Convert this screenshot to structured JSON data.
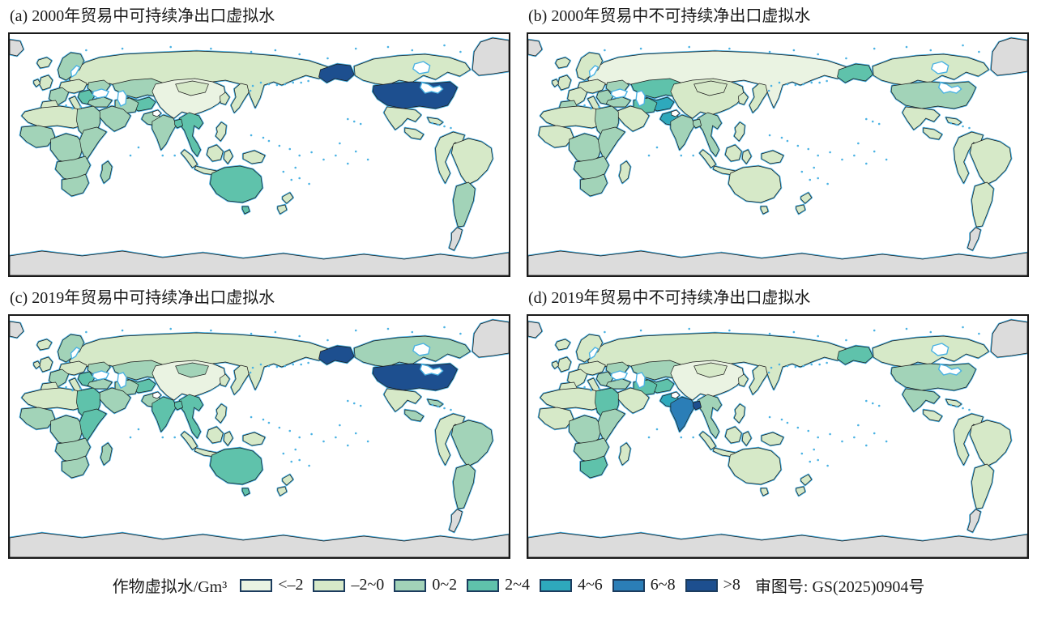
{
  "figure": {
    "panels": [
      {
        "id": "a",
        "title": "(a) 2000年贸易中可持续净出口虚拟水",
        "countries": {
          "russia": "–2~0",
          "china": "<–2",
          "mongolia": "–2~0",
          "kazakhstan": "0~2",
          "centralasia": "2~4",
          "iran": "0~2",
          "mideast": "0~2",
          "pakistan": "0~2",
          "india": "0~2",
          "bangladesh": "2~4",
          "seasia": "2~4",
          "indonesia": "–2~0",
          "japan": "–2~0",
          "korea": "–2~0",
          "scandinavia": "0~2",
          "uk": "–2~0",
          "iceland": "–2~0",
          "france": "0~2",
          "iberia": "–2~0",
          "centraleurope": "–2~0",
          "italy": "–2~0",
          "balkans": "2~4",
          "ukraine": "0~2",
          "turkey": "0~2",
          "africaN": "–2~0",
          "egypt": "0~2",
          "africaW": "0~2",
          "africaC": "0~2",
          "africaE": "0~2",
          "africaS": "0~2",
          "southafrica": "0~2",
          "madagascar": "0~2",
          "australia": "2~4",
          "nz": "–2~0",
          "alaska": ">8",
          "canada": "–2~0",
          "usa": ">8",
          "mexico": "–2~0",
          "camerica": "–2~0",
          "andes": "–2~0",
          "brazil": "–2~0",
          "argentina": "0~2",
          "kashmir": "blank",
          "greenland": "no_data",
          "antarctica": "no_data"
        }
      },
      {
        "id": "b",
        "title": "(b) 2000年贸易中不可持续净出口虚拟水",
        "countries": {
          "russia": "<–2",
          "china": "–2~0",
          "mongolia": "–2~0",
          "kazakhstan": "2~4",
          "centralasia": "4~6",
          "iran": "2~4",
          "mideast": "–2~0",
          "pakistan": "4~6",
          "india": "0~2",
          "bangladesh": "0~2",
          "seasia": "0~2",
          "indonesia": "–2~0",
          "japan": "–2~0",
          "korea": "–2~0",
          "scandinavia": "–2~0",
          "uk": "–2~0",
          "iceland": "–2~0",
          "france": "–2~0",
          "iberia": "0~2",
          "centraleurope": "–2~0",
          "italy": "–2~0",
          "balkans": "0~2",
          "ukraine": "0~2",
          "turkey": "0~2",
          "africaN": "–2~0",
          "egypt": "0~2",
          "africaW": "–2~0",
          "africaC": "0~2",
          "africaE": "0~2",
          "africaS": "0~2",
          "southafrica": "0~2",
          "madagascar": "–2~0",
          "australia": "–2~0",
          "nz": "–2~0",
          "alaska": "2~4",
          "canada": "–2~0",
          "usa": "0~2",
          "mexico": "–2~0",
          "camerica": "–2~0",
          "andes": "–2~0",
          "brazil": "–2~0",
          "argentina": "–2~0",
          "kashmir": "blank",
          "greenland": "no_data",
          "antarctica": "no_data"
        }
      },
      {
        "id": "c",
        "title": "(c) 2019年贸易中可持续净出口虚拟水",
        "countries": {
          "russia": "–2~0",
          "china": "<–2",
          "mongolia": "0~2",
          "kazakhstan": "0~2",
          "centralasia": "2~4",
          "iran": "0~2",
          "mideast": "0~2",
          "pakistan": "0~2",
          "india": "2~4",
          "bangladesh": "2~4",
          "seasia": "2~4",
          "indonesia": "–2~0",
          "japan": "–2~0",
          "korea": "–2~0",
          "scandinavia": "0~2",
          "uk": "–2~0",
          "iceland": "–2~0",
          "france": "0~2",
          "iberia": "–2~0",
          "centraleurope": "–2~0",
          "italy": "–2~0",
          "balkans": "2~4",
          "ukraine": "0~2",
          "turkey": "0~2",
          "africaN": "–2~0",
          "egypt": "2~4",
          "africaW": "0~2",
          "africaC": "0~2",
          "africaE": "2~4",
          "africaS": "0~2",
          "southafrica": "0~2",
          "madagascar": "0~2",
          "australia": "2~4",
          "nz": "–2~0",
          "alaska": ">8",
          "canada": "0~2",
          "usa": ">8",
          "mexico": "–2~0",
          "camerica": "0~2",
          "andes": "–2~0",
          "brazil": "0~2",
          "argentina": "0~2",
          "kashmir": "blank",
          "greenland": "no_data",
          "antarctica": "no_data"
        }
      },
      {
        "id": "d",
        "title": "(d) 2019年贸易中不可持续净出口虚拟水",
        "countries": {
          "russia": "–2~0",
          "china": "<–2",
          "mongolia": "–2~0",
          "kazakhstan": "0~2",
          "centralasia": "2~4",
          "iran": "2~4",
          "mideast": "–2~0",
          "pakistan": "4~6",
          "india": "6~8",
          "bangladesh": ">8",
          "seasia": "0~2",
          "indonesia": "–2~0",
          "japan": "–2~0",
          "korea": "–2~0",
          "scandinavia": "–2~0",
          "uk": "–2~0",
          "iceland": "–2~0",
          "france": "–2~0",
          "iberia": "–2~0",
          "centraleurope": "–2~0",
          "italy": "–2~0",
          "balkans": "0~2",
          "ukraine": "0~2",
          "turkey": "0~2",
          "africaN": "–2~0",
          "egypt": "2~4",
          "africaW": "–2~0",
          "africaC": "0~2",
          "africaE": "0~2",
          "africaS": "0~2",
          "southafrica": "2~4",
          "madagascar": "–2~0",
          "australia": "–2~0",
          "nz": "–2~0",
          "alaska": "2~4",
          "canada": "–2~0",
          "usa": "0~2",
          "mexico": "0~2",
          "camerica": "–2~0",
          "andes": "–2~0",
          "brazil": "–2~0",
          "argentina": "–2~0",
          "kashmir": "blank",
          "greenland": "no_data",
          "antarctica": "no_data"
        }
      }
    ],
    "legend": {
      "unit_label": "作物虚拟水/Gm³",
      "bins": [
        {
          "label": "<–2",
          "color": "#eaf3e2"
        },
        {
          "label": "–2~0",
          "color": "#d6e9c8"
        },
        {
          "label": "0~2",
          "color": "#a2d3b8"
        },
        {
          "label": "2~4",
          "color": "#5fc2ab"
        },
        {
          "label": "4~6",
          "color": "#2ea9bc"
        },
        {
          "label": "6~8",
          "color": "#2b7eb7"
        },
        {
          "label": ">8",
          "color": "#1d4f8f"
        }
      ],
      "approval_number": "审图号: GS(2025)0904号"
    },
    "map_colors": {
      "no_data": "#dcdcdc",
      "disputed": "#ffffff",
      "water": "#4ab2e3",
      "border": "#1a1a1a",
      "ocean": "#ffffff",
      "swatch_border": "#1c3c5e"
    }
  }
}
